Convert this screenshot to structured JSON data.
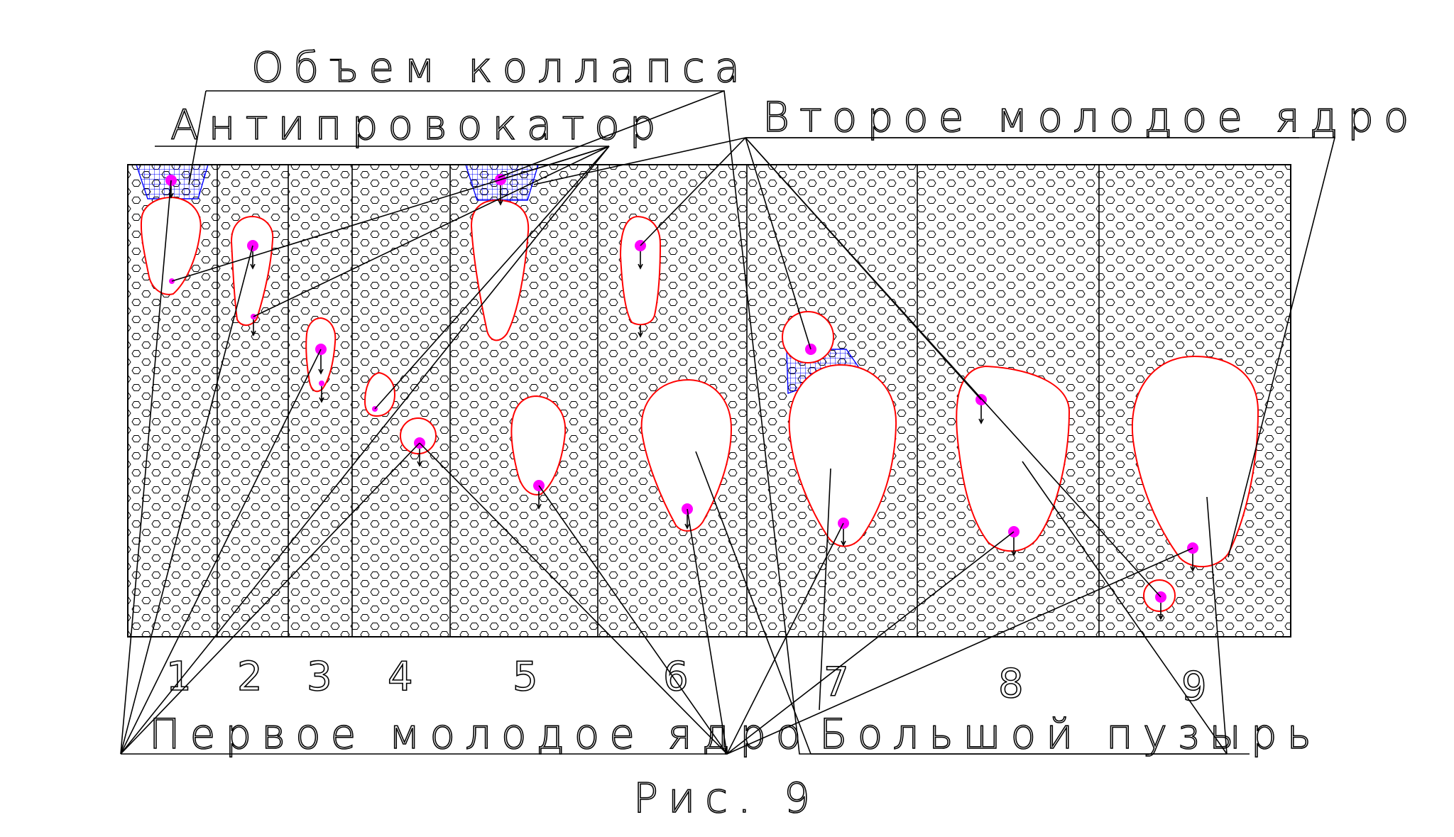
{
  "labels": {
    "collapse_volume": "Объем коллапса",
    "antiprovocator": "Антипровокатор",
    "second_young_nucleus": "Второе молодое ядро",
    "first_young_nucleus": "Первое молодое ядро",
    "big_bubble": "Большой пузырь",
    "caption": "Рис. 9"
  },
  "stages": [
    "1",
    "2",
    "3",
    "4",
    "5",
    "6",
    "7",
    "8",
    "9"
  ],
  "colors": {
    "bubble_outline": "#ff0000",
    "nucleus": "#ff00ff",
    "antiprovocator_hatch": "#0000ff",
    "lines": "#000000"
  }
}
